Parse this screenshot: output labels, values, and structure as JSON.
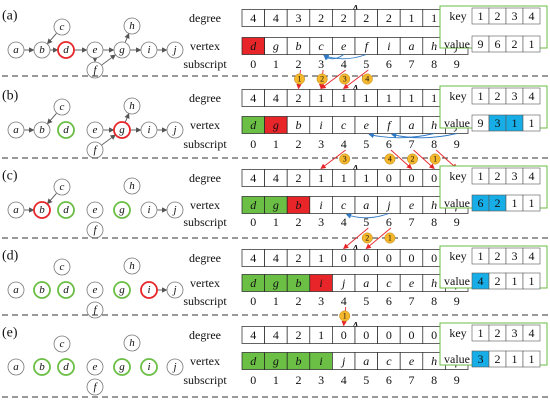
{
  "colors": {
    "green": "#6bbf45",
    "red": "#e8262a",
    "blue": "#17aee8",
    "badge": "#f5b72b",
    "arrow_red": "#e8262a",
    "arrow_blue": "#2f79c5",
    "h_border": "#6bbf45",
    "grid": "#222222",
    "node": "#777777"
  },
  "row_labels": {
    "degree": "degree",
    "vertex": "vertex",
    "subscript": "subscript"
  },
  "h_labels": {
    "key": "key",
    "value": "value"
  },
  "panels": [
    {
      "label": "(a)",
      "a_title": "A",
      "h_title": "H",
      "degree": [
        "4",
        "4",
        "3",
        "2",
        "2",
        "2",
        "2",
        "1",
        "1",
        "1"
      ],
      "vertex": [
        "d",
        "g",
        "b",
        "c",
        "e",
        "f",
        "i",
        "a",
        "h",
        "j"
      ],
      "vertex_fill": [
        "red",
        "",
        "",
        "",
        "",
        "",
        "",
        "",
        "",
        ""
      ],
      "subscript": [
        "0",
        "1",
        "2",
        "3",
        "4",
        "5",
        "6",
        "7",
        "8",
        "9"
      ],
      "badges": [],
      "h_keys": [
        "1",
        "2",
        "3",
        "4"
      ],
      "h_values": [
        "9",
        "6",
        "2",
        "1"
      ],
      "h_fill": [
        "",
        "",
        "",
        ""
      ],
      "nodes": [
        {
          "id": "a",
          "ring": ""
        },
        {
          "id": "b",
          "ring": ""
        },
        {
          "id": "c",
          "ring": ""
        },
        {
          "id": "d",
          "ring": "red"
        },
        {
          "id": "e",
          "ring": ""
        },
        {
          "id": "f",
          "ring": ""
        },
        {
          "id": "g",
          "ring": ""
        },
        {
          "id": "h",
          "ring": ""
        },
        {
          "id": "i",
          "ring": ""
        },
        {
          "id": "j",
          "ring": ""
        }
      ]
    },
    {
      "label": "(b)",
      "a_title": "A",
      "h_title": "H",
      "degree": [
        "4",
        "4",
        "2",
        "1",
        "1",
        "1",
        "1",
        "1",
        "1",
        "1"
      ],
      "vertex": [
        "d",
        "g",
        "b",
        "i",
        "c",
        "e",
        "f",
        "a",
        "h",
        "j"
      ],
      "vertex_fill": [
        "green",
        "red",
        "",
        "",
        "",
        "",
        "",
        "",
        "",
        ""
      ],
      "subscript": [
        "0",
        "1",
        "2",
        "3",
        "4",
        "5",
        "6",
        "7",
        "8",
        "9"
      ],
      "badges": [
        "4",
        "3",
        "2",
        "1"
      ],
      "h_keys": [
        "1",
        "2",
        "3",
        "4"
      ],
      "h_values": [
        "9",
        "3",
        "1",
        "1"
      ],
      "h_fill": [
        "",
        "blue",
        "blue",
        ""
      ],
      "nodes": [
        {
          "id": "a",
          "ring": ""
        },
        {
          "id": "b",
          "ring": ""
        },
        {
          "id": "c",
          "ring": ""
        },
        {
          "id": "d",
          "ring": "green"
        },
        {
          "id": "e",
          "ring": ""
        },
        {
          "id": "f",
          "ring": ""
        },
        {
          "id": "g",
          "ring": "red"
        },
        {
          "id": "h",
          "ring": ""
        },
        {
          "id": "i",
          "ring": ""
        },
        {
          "id": "j",
          "ring": ""
        }
      ]
    },
    {
      "label": "(c)",
      "a_title": "A",
      "h_title": "H",
      "degree": [
        "4",
        "4",
        "2",
        "1",
        "1",
        "1",
        "0",
        "0",
        "0",
        "0"
      ],
      "vertex": [
        "d",
        "g",
        "b",
        "i",
        "c",
        "a",
        "j",
        "e",
        "h",
        "f"
      ],
      "vertex_fill": [
        "green",
        "green",
        "red",
        "",
        "",
        "",
        "",
        "",
        "",
        ""
      ],
      "subscript": [
        "0",
        "1",
        "2",
        "3",
        "4",
        "5",
        "6",
        "7",
        "8",
        "9"
      ],
      "badges": [
        "3",
        "4",
        "2",
        "1"
      ],
      "h_keys": [
        "1",
        "2",
        "3",
        "4"
      ],
      "h_values": [
        "6",
        "2",
        "1",
        "1"
      ],
      "h_fill": [
        "blue",
        "blue",
        "",
        ""
      ],
      "nodes": [
        {
          "id": "a",
          "ring": ""
        },
        {
          "id": "b",
          "ring": "red"
        },
        {
          "id": "c",
          "ring": ""
        },
        {
          "id": "d",
          "ring": "green"
        },
        {
          "id": "e",
          "ring": ""
        },
        {
          "id": "f",
          "ring": ""
        },
        {
          "id": "g",
          "ring": "green"
        },
        {
          "id": "h",
          "ring": ""
        },
        {
          "id": "i",
          "ring": ""
        },
        {
          "id": "j",
          "ring": ""
        }
      ]
    },
    {
      "label": "(d)",
      "a_title": "A",
      "h_title": "H",
      "degree": [
        "4",
        "4",
        "2",
        "1",
        "0",
        "0",
        "0",
        "0",
        "0",
        "0"
      ],
      "vertex": [
        "d",
        "g",
        "b",
        "i",
        "j",
        "a",
        "c",
        "e",
        "h",
        "f"
      ],
      "vertex_fill": [
        "green",
        "green",
        "green",
        "red",
        "",
        "",
        "",
        "",
        "",
        ""
      ],
      "subscript": [
        "0",
        "1",
        "2",
        "3",
        "4",
        "5",
        "6",
        "7",
        "8",
        "9"
      ],
      "badges": [
        "2",
        "1"
      ],
      "h_keys": [
        "1",
        "2",
        "3",
        "4"
      ],
      "h_values": [
        "4",
        "2",
        "1",
        "1"
      ],
      "h_fill": [
        "blue",
        "",
        "",
        ""
      ],
      "nodes": [
        {
          "id": "a",
          "ring": ""
        },
        {
          "id": "b",
          "ring": "green"
        },
        {
          "id": "c",
          "ring": ""
        },
        {
          "id": "d",
          "ring": "green"
        },
        {
          "id": "e",
          "ring": ""
        },
        {
          "id": "f",
          "ring": ""
        },
        {
          "id": "g",
          "ring": "green"
        },
        {
          "id": "h",
          "ring": ""
        },
        {
          "id": "i",
          "ring": "red"
        },
        {
          "id": "j",
          "ring": ""
        }
      ]
    },
    {
      "label": "(e)",
      "a_title": "A",
      "h_title": "H",
      "degree": [
        "4",
        "4",
        "2",
        "1",
        "0",
        "0",
        "0",
        "0",
        "0",
        "0"
      ],
      "vertex": [
        "d",
        "g",
        "b",
        "i",
        "j",
        "a",
        "c",
        "e",
        "h",
        "f"
      ],
      "vertex_fill": [
        "green",
        "green",
        "green",
        "green",
        "",
        "",
        "",
        "",
        "",
        ""
      ],
      "subscript": [
        "0",
        "1",
        "2",
        "3",
        "4",
        "5",
        "6",
        "7",
        "8",
        "9"
      ],
      "badges": [
        "1"
      ],
      "h_keys": [
        "1",
        "2",
        "3",
        "4"
      ],
      "h_values": [
        "3",
        "2",
        "1",
        "1"
      ],
      "h_fill": [
        "blue",
        "",
        "",
        ""
      ],
      "nodes": [
        {
          "id": "a",
          "ring": ""
        },
        {
          "id": "b",
          "ring": "green"
        },
        {
          "id": "c",
          "ring": ""
        },
        {
          "id": "d",
          "ring": "green"
        },
        {
          "id": "e",
          "ring": ""
        },
        {
          "id": "f",
          "ring": ""
        },
        {
          "id": "g",
          "ring": "green"
        },
        {
          "id": "h",
          "ring": ""
        },
        {
          "id": "i",
          "ring": "green"
        },
        {
          "id": "j",
          "ring": ""
        }
      ]
    }
  ]
}
